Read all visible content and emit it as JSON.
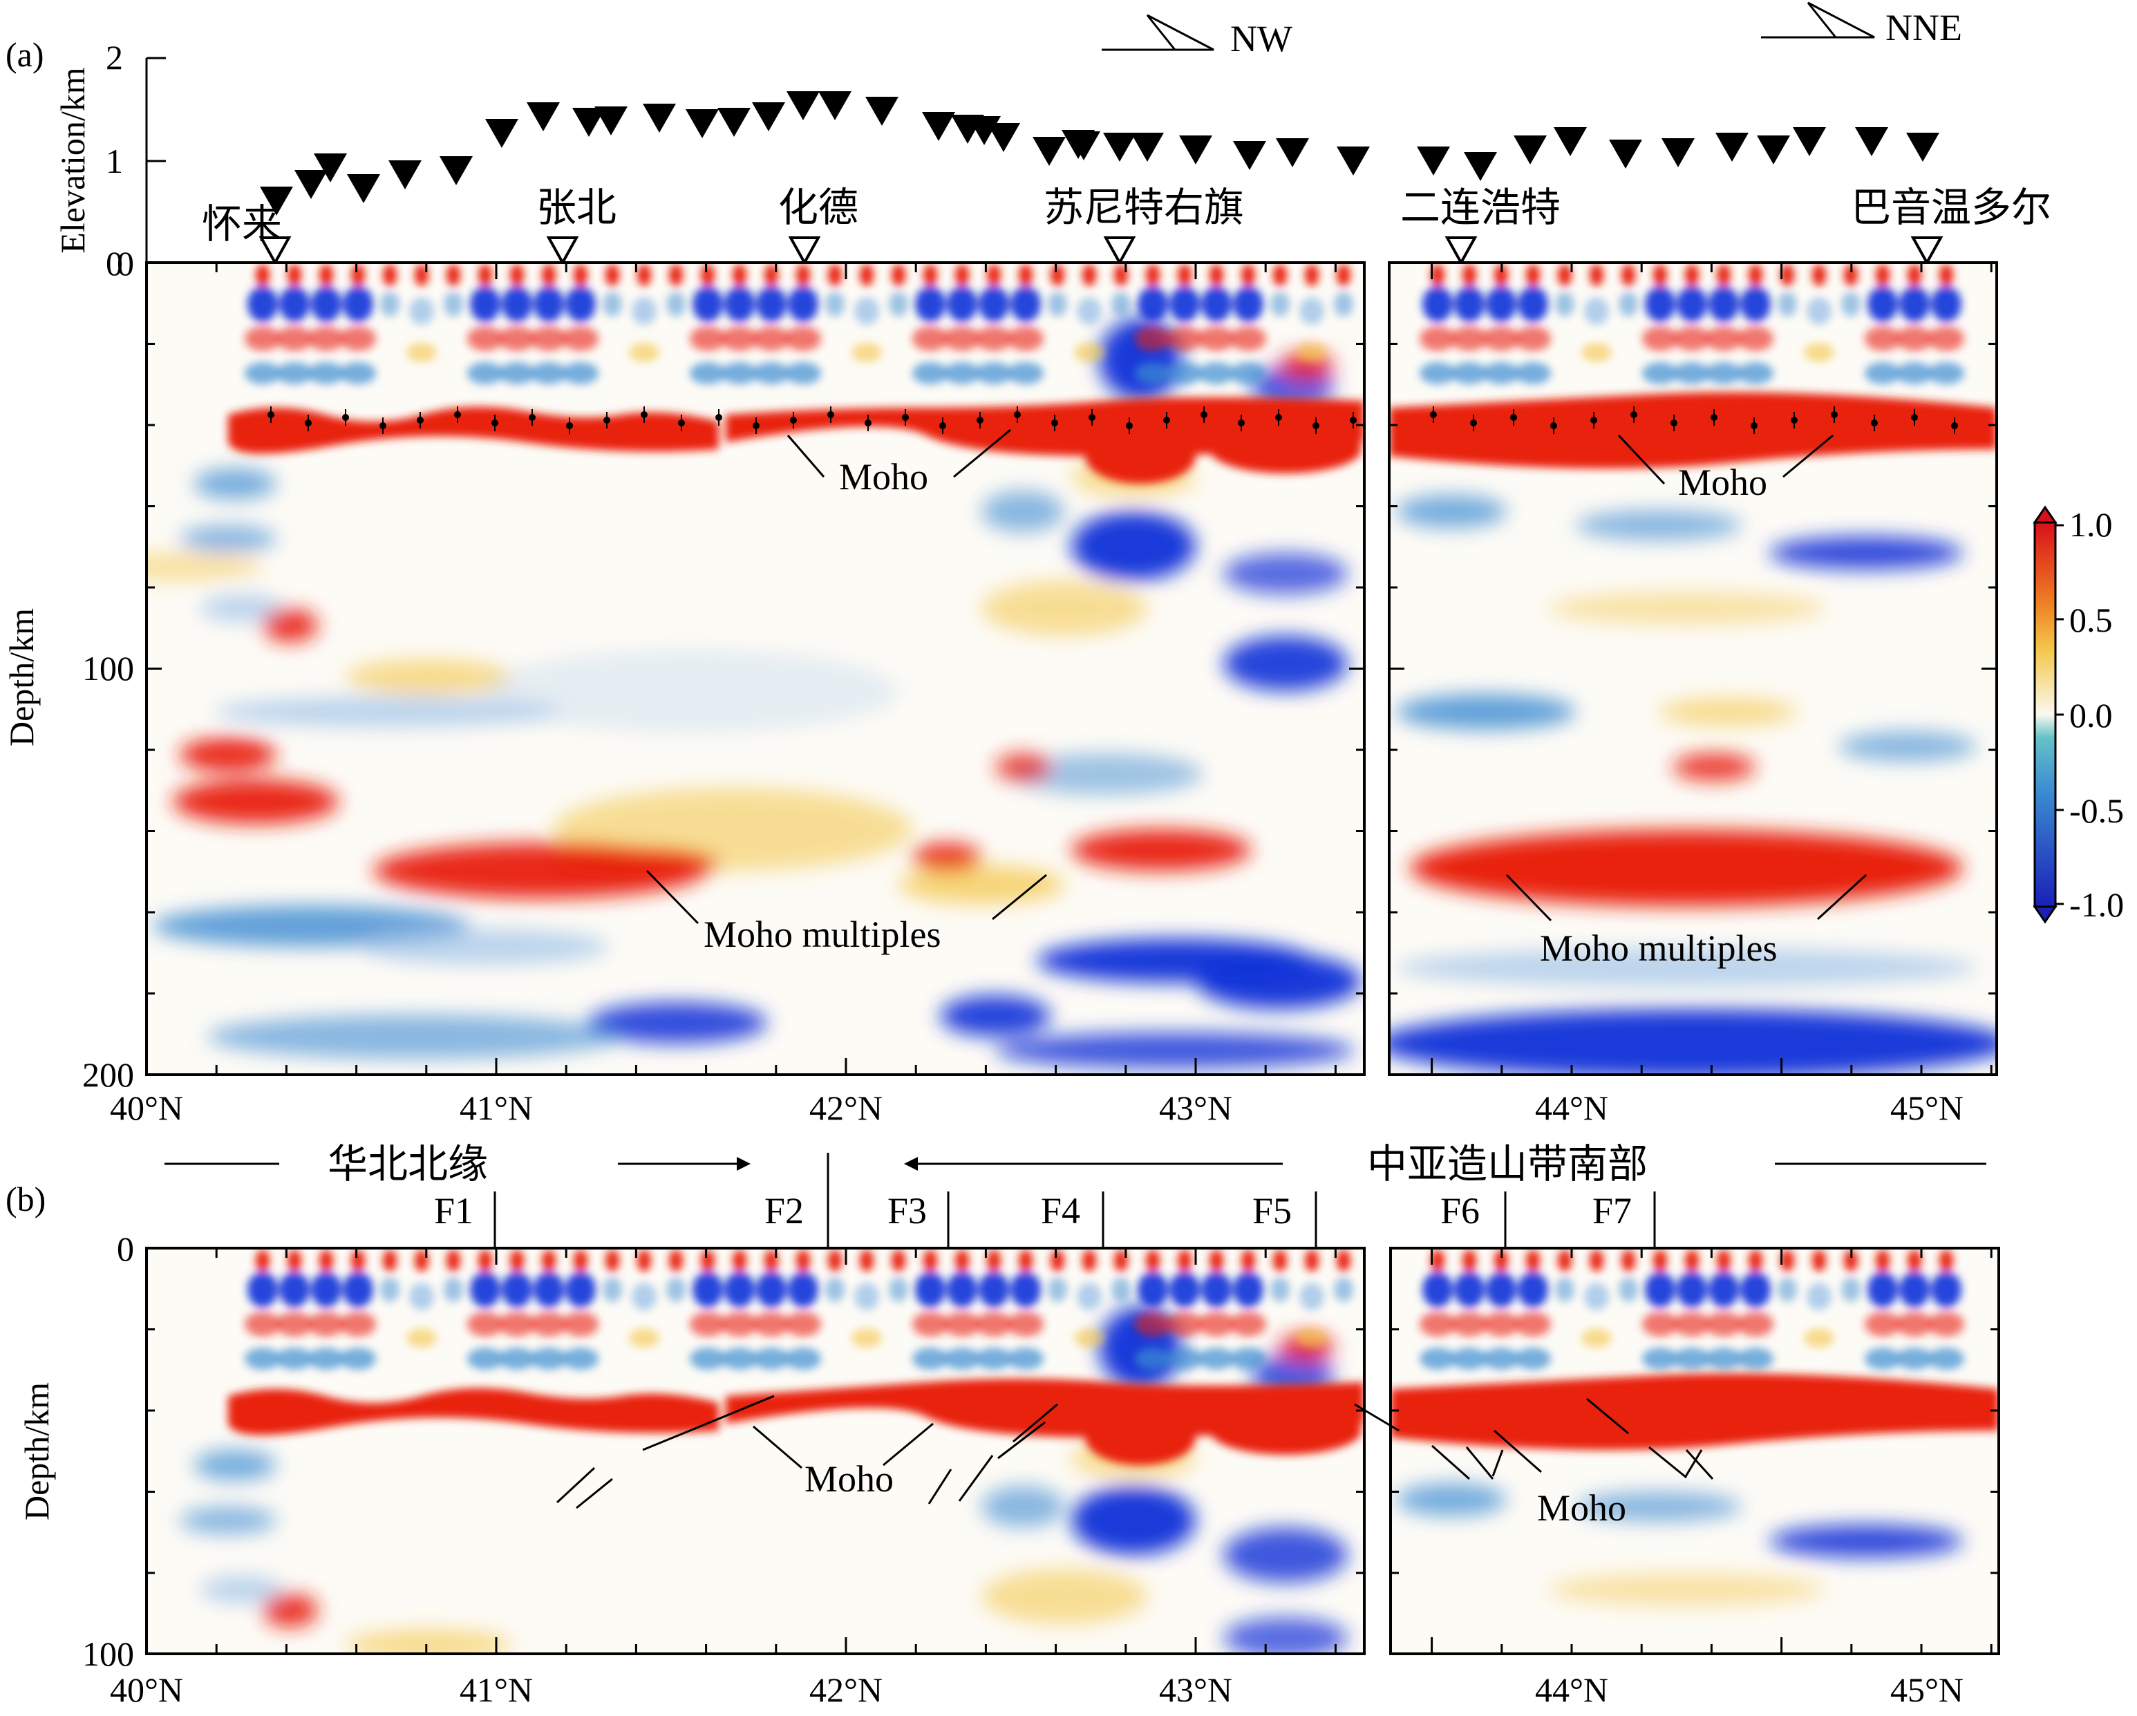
{
  "panel_a": {
    "label": "(a)",
    "elevation_axis": {
      "label": "Elevation/km",
      "ticks": [
        "2",
        "1",
        "0"
      ]
    },
    "depth_axis": {
      "label": "Depth/km",
      "ticks": [
        "0",
        "100",
        "200"
      ]
    },
    "lat_ticks": [
      "40°N",
      "41°N",
      "42°N",
      "43°N",
      "44°N",
      "45°N"
    ],
    "directions": [
      "NW",
      "NNE"
    ],
    "stations": [
      "怀来",
      "张北",
      "化德",
      "苏尼特右旗",
      "二连浩特",
      "巴音温多尔"
    ],
    "annotations": {
      "moho_left": "Moho",
      "moho_right": "Moho",
      "multiples_left": "Moho multiples",
      "multiples_right": "Moho multiples"
    }
  },
  "panel_b": {
    "label": "(b)",
    "depth_axis": {
      "label": "Depth/km",
      "ticks": [
        "0",
        "100"
      ]
    },
    "lat_ticks": [
      "40°N",
      "41°N",
      "42°N",
      "43°N",
      "44°N",
      "45°N"
    ],
    "regions": {
      "north_china": "华北北缘",
      "caob": "中亚造山带南部"
    },
    "faults": [
      "F1",
      "F2",
      "F3",
      "F4",
      "F5",
      "F6",
      "F7"
    ],
    "annotations": {
      "moho_left": "Moho",
      "moho_right": "Moho"
    }
  },
  "colorbar": {
    "ticks": [
      "1.0",
      "0.5",
      "0.0",
      "-0.5",
      "-1.0"
    ]
  },
  "colors": {
    "positive": "#e8200c",
    "negative": "#1030d8",
    "mid_warm": "#f3c545",
    "mid_cool": "#9fc3e8"
  }
}
